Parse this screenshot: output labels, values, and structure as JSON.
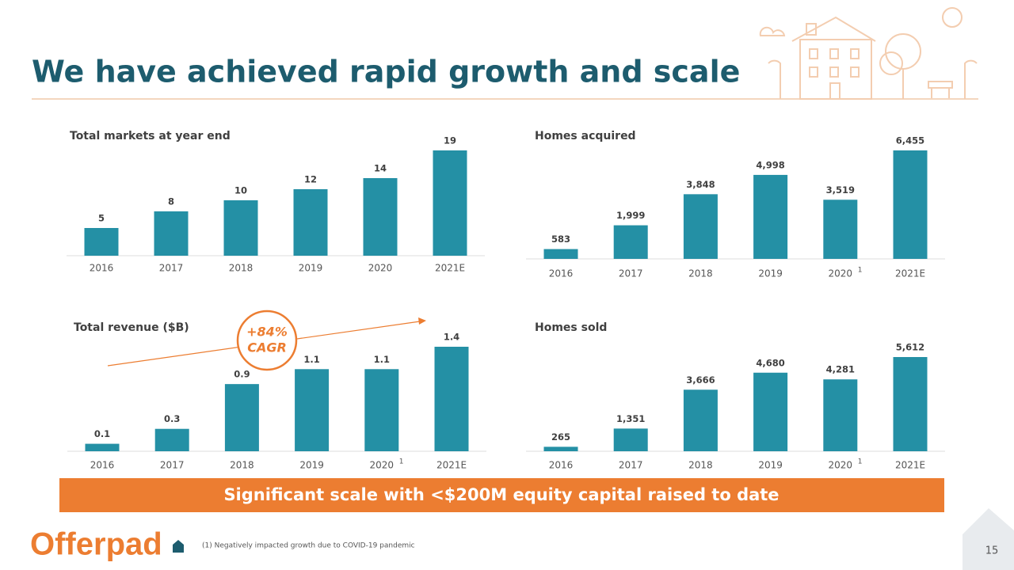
{
  "title": "We have achieved rapid growth and scale",
  "banner": "Significant scale with <$200M equity capital raised to date",
  "logo": "Offerpad",
  "footnote": "(1) Negatively impacted growth due to COVID-19 pandemic",
  "page_number": "15",
  "chart_data": [
    {
      "type": "bar",
      "title": "Total markets at year end",
      "color": "#2490a5",
      "categories": [
        "2016",
        "2017",
        "2018",
        "2019",
        "2020",
        "2021E"
      ],
      "values": [
        5,
        8,
        10,
        12,
        14,
        19
      ]
    },
    {
      "type": "bar",
      "title": "Homes acquired",
      "color": "#2490a5",
      "categories": [
        "2016",
        "2017",
        "2018",
        "2019",
        "2020",
        "2021E"
      ],
      "category_notes": [
        null,
        null,
        null,
        null,
        "1",
        null
      ],
      "values": [
        583,
        1999,
        3848,
        4998,
        3519,
        6455
      ],
      "value_labels": [
        "583",
        "1,999",
        "3,848",
        "4,998",
        "3,519",
        "6,455"
      ]
    },
    {
      "type": "bar",
      "title": "Total revenue ($B)",
      "color": "#2490a5",
      "categories": [
        "2016",
        "2017",
        "2018",
        "2019",
        "2020",
        "2021E"
      ],
      "category_notes": [
        null,
        null,
        null,
        null,
        "1",
        null
      ],
      "values": [
        0.1,
        0.3,
        0.9,
        1.1,
        1.1,
        1.4
      ],
      "annotation": [
        "+84%",
        "CAGR"
      ]
    },
    {
      "type": "bar",
      "title": "Homes sold",
      "color": "#2490a5",
      "categories": [
        "2016",
        "2017",
        "2018",
        "2019",
        "2020",
        "2021E"
      ],
      "category_notes": [
        null,
        null,
        null,
        null,
        "1",
        null
      ],
      "values": [
        265,
        1351,
        3666,
        4680,
        4281,
        5612
      ],
      "value_labels": [
        "265",
        "1,351",
        "3,666",
        "4,680",
        "4,281",
        "5,612"
      ]
    }
  ]
}
